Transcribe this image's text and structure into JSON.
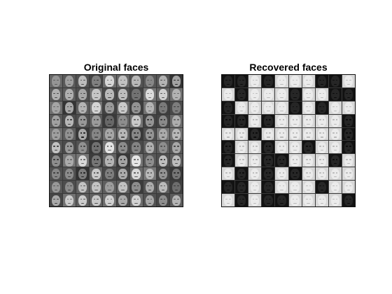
{
  "panels": [
    {
      "title": "Original faces",
      "kind": "original",
      "rows": 10,
      "cols": 10
    },
    {
      "title": "Recovered faces",
      "kind": "recovered",
      "rows": 10,
      "cols": 10,
      "pattern": [
        [
          0,
          0,
          1,
          0,
          1,
          1,
          1,
          0,
          0,
          1
        ],
        [
          1,
          0,
          1,
          1,
          1,
          0,
          1,
          1,
          0,
          0
        ],
        [
          0,
          1,
          1,
          1,
          1,
          0,
          1,
          0,
          1,
          1
        ],
        [
          0,
          0,
          1,
          0,
          1,
          1,
          1,
          1,
          1,
          0
        ],
        [
          1,
          1,
          0,
          1,
          1,
          1,
          1,
          1,
          1,
          0
        ],
        [
          0,
          1,
          1,
          0,
          1,
          1,
          0,
          1,
          1,
          0
        ],
        [
          0,
          1,
          1,
          0,
          0,
          1,
          1,
          1,
          0,
          1
        ],
        [
          1,
          0,
          1,
          0,
          1,
          0,
          1,
          1,
          1,
          1
        ],
        [
          0,
          0,
          1,
          0,
          1,
          1,
          1,
          0,
          1,
          1
        ],
        [
          1,
          0,
          1,
          0,
          0,
          1,
          1,
          1,
          1,
          0
        ]
      ]
    }
  ]
}
